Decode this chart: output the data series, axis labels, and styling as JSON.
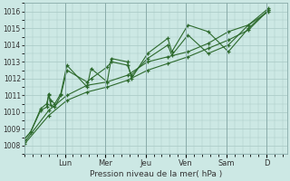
{
  "xlabel": "Pression niveau de la mer( hPa )",
  "bg_color": "#cce8e4",
  "line_color": "#2d6a2d",
  "grid_color": "#a8c8c4",
  "ylim": [
    1007.5,
    1016.5
  ],
  "yticks": [
    1008,
    1009,
    1010,
    1011,
    1012,
    1013,
    1014,
    1015,
    1016
  ],
  "day_labels": [
    "Lun",
    "Mer",
    "Jeu",
    "Ven",
    "Sam",
    "D"
  ],
  "day_tick_x": [
    1.0,
    2.0,
    3.0,
    4.0,
    5.0,
    6.0
  ],
  "xlim": [
    0.0,
    6.5
  ],
  "series": [
    {
      "x": [
        0.0,
        0.15,
        0.4,
        0.55,
        0.6,
        0.65,
        0.75,
        0.9,
        1.05,
        1.55,
        1.65,
        2.05,
        2.15,
        2.55,
        2.65,
        3.05,
        3.55,
        3.65,
        4.05,
        4.55,
        5.05,
        5.55,
        6.05
      ],
      "y": [
        1008.4,
        1008.8,
        1010.2,
        1010.5,
        1011.0,
        1010.7,
        1010.5,
        1011.1,
        1012.8,
        1011.5,
        1012.6,
        1011.8,
        1013.2,
        1013.0,
        1012.0,
        1013.5,
        1014.4,
        1013.6,
        1015.2,
        1014.8,
        1013.6,
        1015.0,
        1016.1
      ]
    },
    {
      "x": [
        0.0,
        0.15,
        0.4,
        0.55,
        0.6,
        0.65,
        0.75,
        0.9,
        1.05,
        1.55,
        1.65,
        2.05,
        2.15,
        2.55,
        2.65,
        3.05,
        3.55,
        3.65,
        4.05,
        4.55,
        5.05,
        5.55,
        6.05
      ],
      "y": [
        1008.4,
        1008.8,
        1010.1,
        1010.3,
        1011.1,
        1010.4,
        1010.3,
        1011.0,
        1012.5,
        1011.8,
        1012.0,
        1012.7,
        1013.0,
        1012.8,
        1012.2,
        1013.2,
        1014.0,
        1013.4,
        1014.6,
        1013.5,
        1014.0,
        1015.2,
        1016.0
      ],
      "alpha": 1.0
    },
    {
      "x": [
        0.0,
        0.6,
        1.05,
        1.55,
        2.05,
        2.55,
        3.05,
        3.55,
        4.05,
        4.55,
        5.05,
        5.55,
        6.05
      ],
      "y": [
        1008.2,
        1010.1,
        1011.0,
        1011.6,
        1011.8,
        1012.2,
        1013.0,
        1013.3,
        1013.6,
        1014.1,
        1014.8,
        1015.2,
        1016.2
      ]
    },
    {
      "x": [
        0.0,
        0.6,
        1.05,
        1.55,
        2.05,
        2.55,
        3.05,
        3.55,
        4.05,
        4.55,
        5.05,
        5.55,
        6.05
      ],
      "y": [
        1008.1,
        1009.8,
        1010.7,
        1011.2,
        1011.5,
        1011.9,
        1012.5,
        1012.9,
        1013.3,
        1013.8,
        1014.3,
        1014.9,
        1016.1
      ]
    }
  ]
}
